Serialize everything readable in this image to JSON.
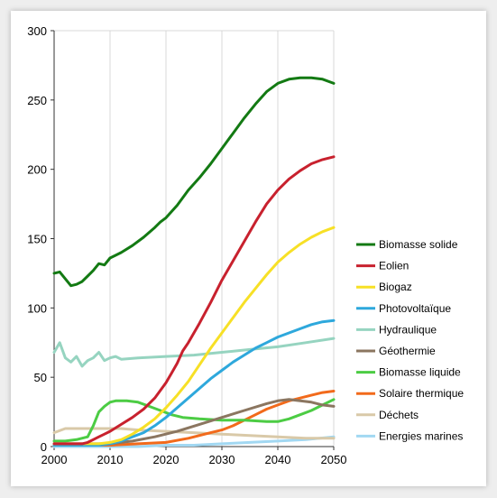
{
  "chart_data": {
    "type": "line",
    "title": "",
    "xlabel": "",
    "ylabel": "",
    "xlim": [
      2000,
      2050
    ],
    "ylim": [
      0,
      300
    ],
    "xticks": [
      2000,
      2010,
      2020,
      2030,
      2040,
      2050
    ],
    "yticks": [
      0,
      50,
      100,
      150,
      200,
      250,
      300
    ],
    "grid": "vertical gridlines at x ticks, horizontal gridline at top",
    "legend_position": "right",
    "series": [
      {
        "name": "Biomasse solide",
        "color": "#137a13",
        "points": [
          [
            2000,
            125
          ],
          [
            2001,
            126
          ],
          [
            2002,
            121
          ],
          [
            2003,
            116
          ],
          [
            2004,
            117
          ],
          [
            2005,
            119
          ],
          [
            2006,
            123
          ],
          [
            2007,
            127
          ],
          [
            2008,
            132
          ],
          [
            2009,
            131
          ],
          [
            2010,
            136
          ],
          [
            2012,
            140
          ],
          [
            2014,
            145
          ],
          [
            2016,
            151
          ],
          [
            2018,
            158
          ],
          [
            2019,
            162
          ],
          [
            2020,
            165
          ],
          [
            2022,
            174
          ],
          [
            2024,
            185
          ],
          [
            2026,
            194
          ],
          [
            2028,
            204
          ],
          [
            2030,
            215
          ],
          [
            2032,
            226
          ],
          [
            2034,
            237
          ],
          [
            2036,
            247
          ],
          [
            2038,
            256
          ],
          [
            2040,
            262
          ],
          [
            2042,
            265
          ],
          [
            2044,
            266
          ],
          [
            2046,
            266
          ],
          [
            2048,
            265
          ],
          [
            2050,
            262
          ]
        ]
      },
      {
        "name": "Eolien",
        "color": "#c8212e",
        "points": [
          [
            2000,
            2
          ],
          [
            2005,
            2
          ],
          [
            2006,
            3
          ],
          [
            2007,
            5
          ],
          [
            2008,
            7
          ],
          [
            2009,
            9
          ],
          [
            2010,
            11
          ],
          [
            2012,
            16
          ],
          [
            2014,
            21
          ],
          [
            2016,
            27
          ],
          [
            2018,
            35
          ],
          [
            2020,
            46
          ],
          [
            2021,
            53
          ],
          [
            2022,
            60
          ],
          [
            2023,
            69
          ],
          [
            2024,
            75
          ],
          [
            2026,
            89
          ],
          [
            2028,
            104
          ],
          [
            2030,
            120
          ],
          [
            2032,
            134
          ],
          [
            2034,
            148
          ],
          [
            2036,
            162
          ],
          [
            2038,
            175
          ],
          [
            2040,
            185
          ],
          [
            2042,
            193
          ],
          [
            2044,
            199
          ],
          [
            2046,
            204
          ],
          [
            2048,
            207
          ],
          [
            2050,
            209
          ]
        ]
      },
      {
        "name": "Biogaz",
        "color": "#f7e026",
        "points": [
          [
            2000,
            2
          ],
          [
            2008,
            2
          ],
          [
            2010,
            3
          ],
          [
            2012,
            5
          ],
          [
            2014,
            9
          ],
          [
            2016,
            14
          ],
          [
            2018,
            20
          ],
          [
            2020,
            28
          ],
          [
            2022,
            37
          ],
          [
            2024,
            47
          ],
          [
            2026,
            59
          ],
          [
            2028,
            71
          ],
          [
            2030,
            82
          ],
          [
            2032,
            93
          ],
          [
            2034,
            104
          ],
          [
            2036,
            114
          ],
          [
            2038,
            124
          ],
          [
            2040,
            133
          ],
          [
            2042,
            140
          ],
          [
            2044,
            146
          ],
          [
            2046,
            151
          ],
          [
            2048,
            155
          ],
          [
            2050,
            158
          ]
        ]
      },
      {
        "name": "Photovoltaïque",
        "color": "#2ea8dc",
        "points": [
          [
            2000,
            1
          ],
          [
            2008,
            1
          ],
          [
            2010,
            2
          ],
          [
            2012,
            4
          ],
          [
            2014,
            7
          ],
          [
            2016,
            10
          ],
          [
            2018,
            15
          ],
          [
            2020,
            21
          ],
          [
            2022,
            28
          ],
          [
            2024,
            35
          ],
          [
            2026,
            42
          ],
          [
            2028,
            49
          ],
          [
            2030,
            55
          ],
          [
            2032,
            61
          ],
          [
            2034,
            66
          ],
          [
            2036,
            71
          ],
          [
            2038,
            75
          ],
          [
            2040,
            79
          ],
          [
            2042,
            82
          ],
          [
            2044,
            85
          ],
          [
            2046,
            88
          ],
          [
            2048,
            90
          ],
          [
            2050,
            91
          ]
        ]
      },
      {
        "name": "Hydraulique",
        "color": "#96d4c0",
        "points": [
          [
            2000,
            68
          ],
          [
            2001,
            75
          ],
          [
            2002,
            64
          ],
          [
            2003,
            61
          ],
          [
            2004,
            65
          ],
          [
            2005,
            58
          ],
          [
            2006,
            62
          ],
          [
            2007,
            64
          ],
          [
            2008,
            68
          ],
          [
            2009,
            62
          ],
          [
            2010,
            64
          ],
          [
            2011,
            65
          ],
          [
            2012,
            63
          ],
          [
            2015,
            64
          ],
          [
            2020,
            65
          ],
          [
            2025,
            66
          ],
          [
            2030,
            68
          ],
          [
            2035,
            70
          ],
          [
            2040,
            72
          ],
          [
            2045,
            75
          ],
          [
            2050,
            78
          ]
        ]
      },
      {
        "name": "Géothermie",
        "color": "#8b7660",
        "points": [
          [
            2000,
            2
          ],
          [
            2010,
            2
          ],
          [
            2014,
            4
          ],
          [
            2018,
            7
          ],
          [
            2022,
            11
          ],
          [
            2026,
            16
          ],
          [
            2030,
            21
          ],
          [
            2034,
            26
          ],
          [
            2038,
            31
          ],
          [
            2040,
            33
          ],
          [
            2042,
            34
          ],
          [
            2044,
            33
          ],
          [
            2046,
            32
          ],
          [
            2048,
            30
          ],
          [
            2050,
            29
          ]
        ]
      },
      {
        "name": "Biomasse liquide",
        "color": "#4ccc44",
        "points": [
          [
            2000,
            4
          ],
          [
            2002,
            4
          ],
          [
            2004,
            5
          ],
          [
            2006,
            7
          ],
          [
            2007,
            15
          ],
          [
            2008,
            25
          ],
          [
            2009,
            29
          ],
          [
            2010,
            32
          ],
          [
            2011,
            33
          ],
          [
            2013,
            33
          ],
          [
            2015,
            32
          ],
          [
            2017,
            29
          ],
          [
            2019,
            26
          ],
          [
            2021,
            23
          ],
          [
            2023,
            21
          ],
          [
            2026,
            20
          ],
          [
            2030,
            19
          ],
          [
            2034,
            19
          ],
          [
            2038,
            18
          ],
          [
            2040,
            18
          ],
          [
            2042,
            20
          ],
          [
            2044,
            23
          ],
          [
            2046,
            26
          ],
          [
            2048,
            30
          ],
          [
            2050,
            34
          ]
        ]
      },
      {
        "name": "Solaire thermique",
        "color": "#f26a1b",
        "points": [
          [
            2000,
            1
          ],
          [
            2010,
            1
          ],
          [
            2015,
            2
          ],
          [
            2020,
            3
          ],
          [
            2024,
            6
          ],
          [
            2028,
            10
          ],
          [
            2030,
            12
          ],
          [
            2032,
            15
          ],
          [
            2034,
            19
          ],
          [
            2036,
            23
          ],
          [
            2038,
            27
          ],
          [
            2040,
            30
          ],
          [
            2042,
            33
          ],
          [
            2044,
            35
          ],
          [
            2046,
            37
          ],
          [
            2048,
            39
          ],
          [
            2050,
            40
          ]
        ]
      },
      {
        "name": "Déchets",
        "color": "#d9c9a8",
        "points": [
          [
            2000,
            10
          ],
          [
            2002,
            13
          ],
          [
            2004,
            13
          ],
          [
            2006,
            13
          ],
          [
            2008,
            13
          ],
          [
            2010,
            13
          ],
          [
            2012,
            13
          ],
          [
            2015,
            12
          ],
          [
            2020,
            11
          ],
          [
            2025,
            10
          ],
          [
            2030,
            9
          ],
          [
            2035,
            8
          ],
          [
            2040,
            7
          ],
          [
            2045,
            6
          ],
          [
            2050,
            6
          ]
        ]
      },
      {
        "name": "Energies marines",
        "color": "#a2d8f2",
        "points": [
          [
            2000,
            0
          ],
          [
            2015,
            0
          ],
          [
            2020,
            1
          ],
          [
            2025,
            1
          ],
          [
            2030,
            2
          ],
          [
            2035,
            3
          ],
          [
            2040,
            4
          ],
          [
            2045,
            5
          ],
          [
            2050,
            7
          ]
        ]
      }
    ]
  }
}
